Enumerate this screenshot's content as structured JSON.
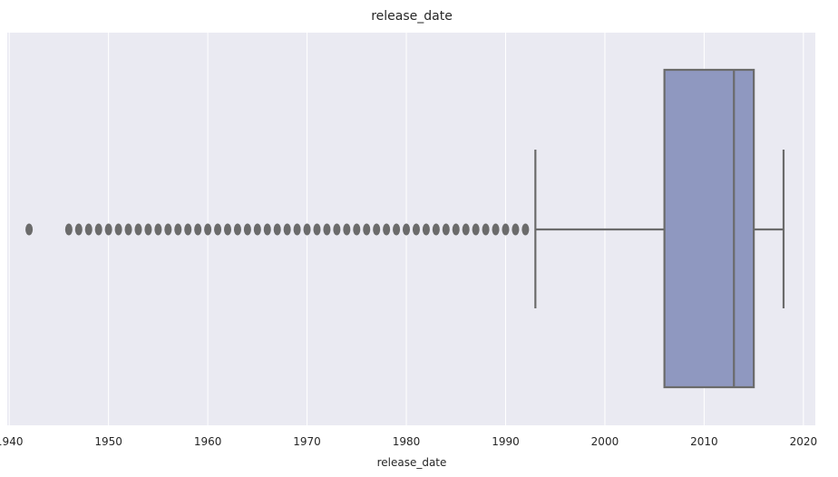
{
  "chart_data": {
    "type": "boxplot",
    "title": "release_date",
    "xlabel": "release_date",
    "xlim": [
      1939.8,
      2021.2
    ],
    "xticks": [
      1940,
      1950,
      1960,
      1970,
      1980,
      1990,
      2000,
      2010,
      2020
    ],
    "box": {
      "whisker_low": 1993,
      "q1": 2006,
      "median": 2013,
      "q3": 2015,
      "whisker_high": 2018,
      "fill_color": "#8f98c0",
      "line_color": "#6b6b6b"
    },
    "outliers": [
      1942,
      1946,
      1947,
      1948,
      1949,
      1950,
      1951,
      1952,
      1953,
      1954,
      1955,
      1956,
      1957,
      1958,
      1959,
      1960,
      1961,
      1962,
      1963,
      1964,
      1965,
      1966,
      1967,
      1968,
      1969,
      1970,
      1971,
      1972,
      1973,
      1974,
      1975,
      1976,
      1977,
      1978,
      1979,
      1980,
      1981,
      1982,
      1983,
      1984,
      1985,
      1986,
      1987,
      1988,
      1989,
      1990,
      1991,
      1992
    ],
    "grid": true,
    "background_color": "#eaeaf2"
  }
}
